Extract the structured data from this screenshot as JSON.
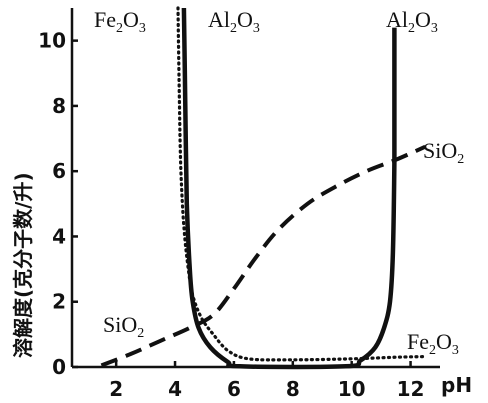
{
  "chart_data": {
    "type": "line",
    "xlabel": "pH",
    "ylabel": "溶解度(克分子数/升)",
    "xlim": [
      0.5,
      13
    ],
    "ylim": [
      0,
      11
    ],
    "x_ticks": [
      2,
      4,
      6,
      8,
      10,
      12
    ],
    "y_ticks": [
      0,
      2,
      4,
      6,
      8,
      10
    ],
    "grid": false,
    "series": [
      {
        "name": "Al2O3",
        "style": "solid",
        "color": "#111111",
        "label_positions": [
          "top-left",
          "top-right"
        ],
        "points": [
          [
            4.3,
            11.0
          ],
          [
            4.35,
            8.0
          ],
          [
            4.4,
            5.0
          ],
          [
            4.5,
            3.0
          ],
          [
            4.6,
            2.0
          ],
          [
            4.8,
            1.2
          ],
          [
            5.2,
            0.6
          ],
          [
            5.8,
            0.15
          ],
          [
            6.2,
            0.02
          ],
          [
            9.8,
            0.02
          ],
          [
            10.3,
            0.2
          ],
          [
            10.8,
            0.6
          ],
          [
            11.1,
            1.2
          ],
          [
            11.3,
            2.0
          ],
          [
            11.4,
            3.5
          ],
          [
            11.45,
            6.3
          ],
          [
            11.45,
            8.5
          ],
          [
            11.45,
            10.4
          ]
        ]
      },
      {
        "name": "Fe2O3",
        "style": "dotted",
        "color": "#111111",
        "label_positions": [
          "top-left",
          "bottom-right"
        ],
        "points": [
          [
            4.1,
            11.0
          ],
          [
            4.15,
            8.0
          ],
          [
            4.2,
            6.0
          ],
          [
            4.3,
            4.3
          ],
          [
            4.45,
            3.0
          ],
          [
            4.6,
            2.2
          ],
          [
            4.9,
            1.5
          ],
          [
            5.3,
            1.0
          ],
          [
            5.8,
            0.5
          ],
          [
            6.5,
            0.25
          ],
          [
            8.0,
            0.22
          ],
          [
            10.0,
            0.25
          ],
          [
            11.5,
            0.3
          ],
          [
            12.5,
            0.32
          ]
        ]
      },
      {
        "name": "SiO2",
        "style": "dashed",
        "color": "#111111",
        "label_positions": [
          "bottom-left",
          "right"
        ],
        "points": [
          [
            1.5,
            0.05
          ],
          [
            2.5,
            0.4
          ],
          [
            3.5,
            0.8
          ],
          [
            4.5,
            1.2
          ],
          [
            5.3,
            1.6
          ],
          [
            6.0,
            2.4
          ],
          [
            6.7,
            3.3
          ],
          [
            7.5,
            4.2
          ],
          [
            8.5,
            5.0
          ],
          [
            9.5,
            5.55
          ],
          [
            10.5,
            6.0
          ],
          [
            11.5,
            6.35
          ],
          [
            12.5,
            6.75
          ]
        ]
      }
    ],
    "labels": {
      "al2o3_top_left": {
        "base": "Al",
        "sub1": "2",
        "mid": "O",
        "sub2": "3"
      },
      "al2o3_top_right": {
        "base": "Al",
        "sub1": "2",
        "mid": "O",
        "sub2": "3"
      },
      "fe2o3_top_left": {
        "base": "Fe",
        "sub1": "2",
        "mid": "O",
        "sub2": "3"
      },
      "fe2o3_bottom_right": {
        "base": "Fe",
        "sub1": "2",
        "mid": "O",
        "sub2": "3"
      },
      "sio2_right": {
        "base": "SiO",
        "sub1": "2"
      },
      "sio2_bottom_left": {
        "base": "SiO",
        "sub1": "2"
      }
    }
  }
}
